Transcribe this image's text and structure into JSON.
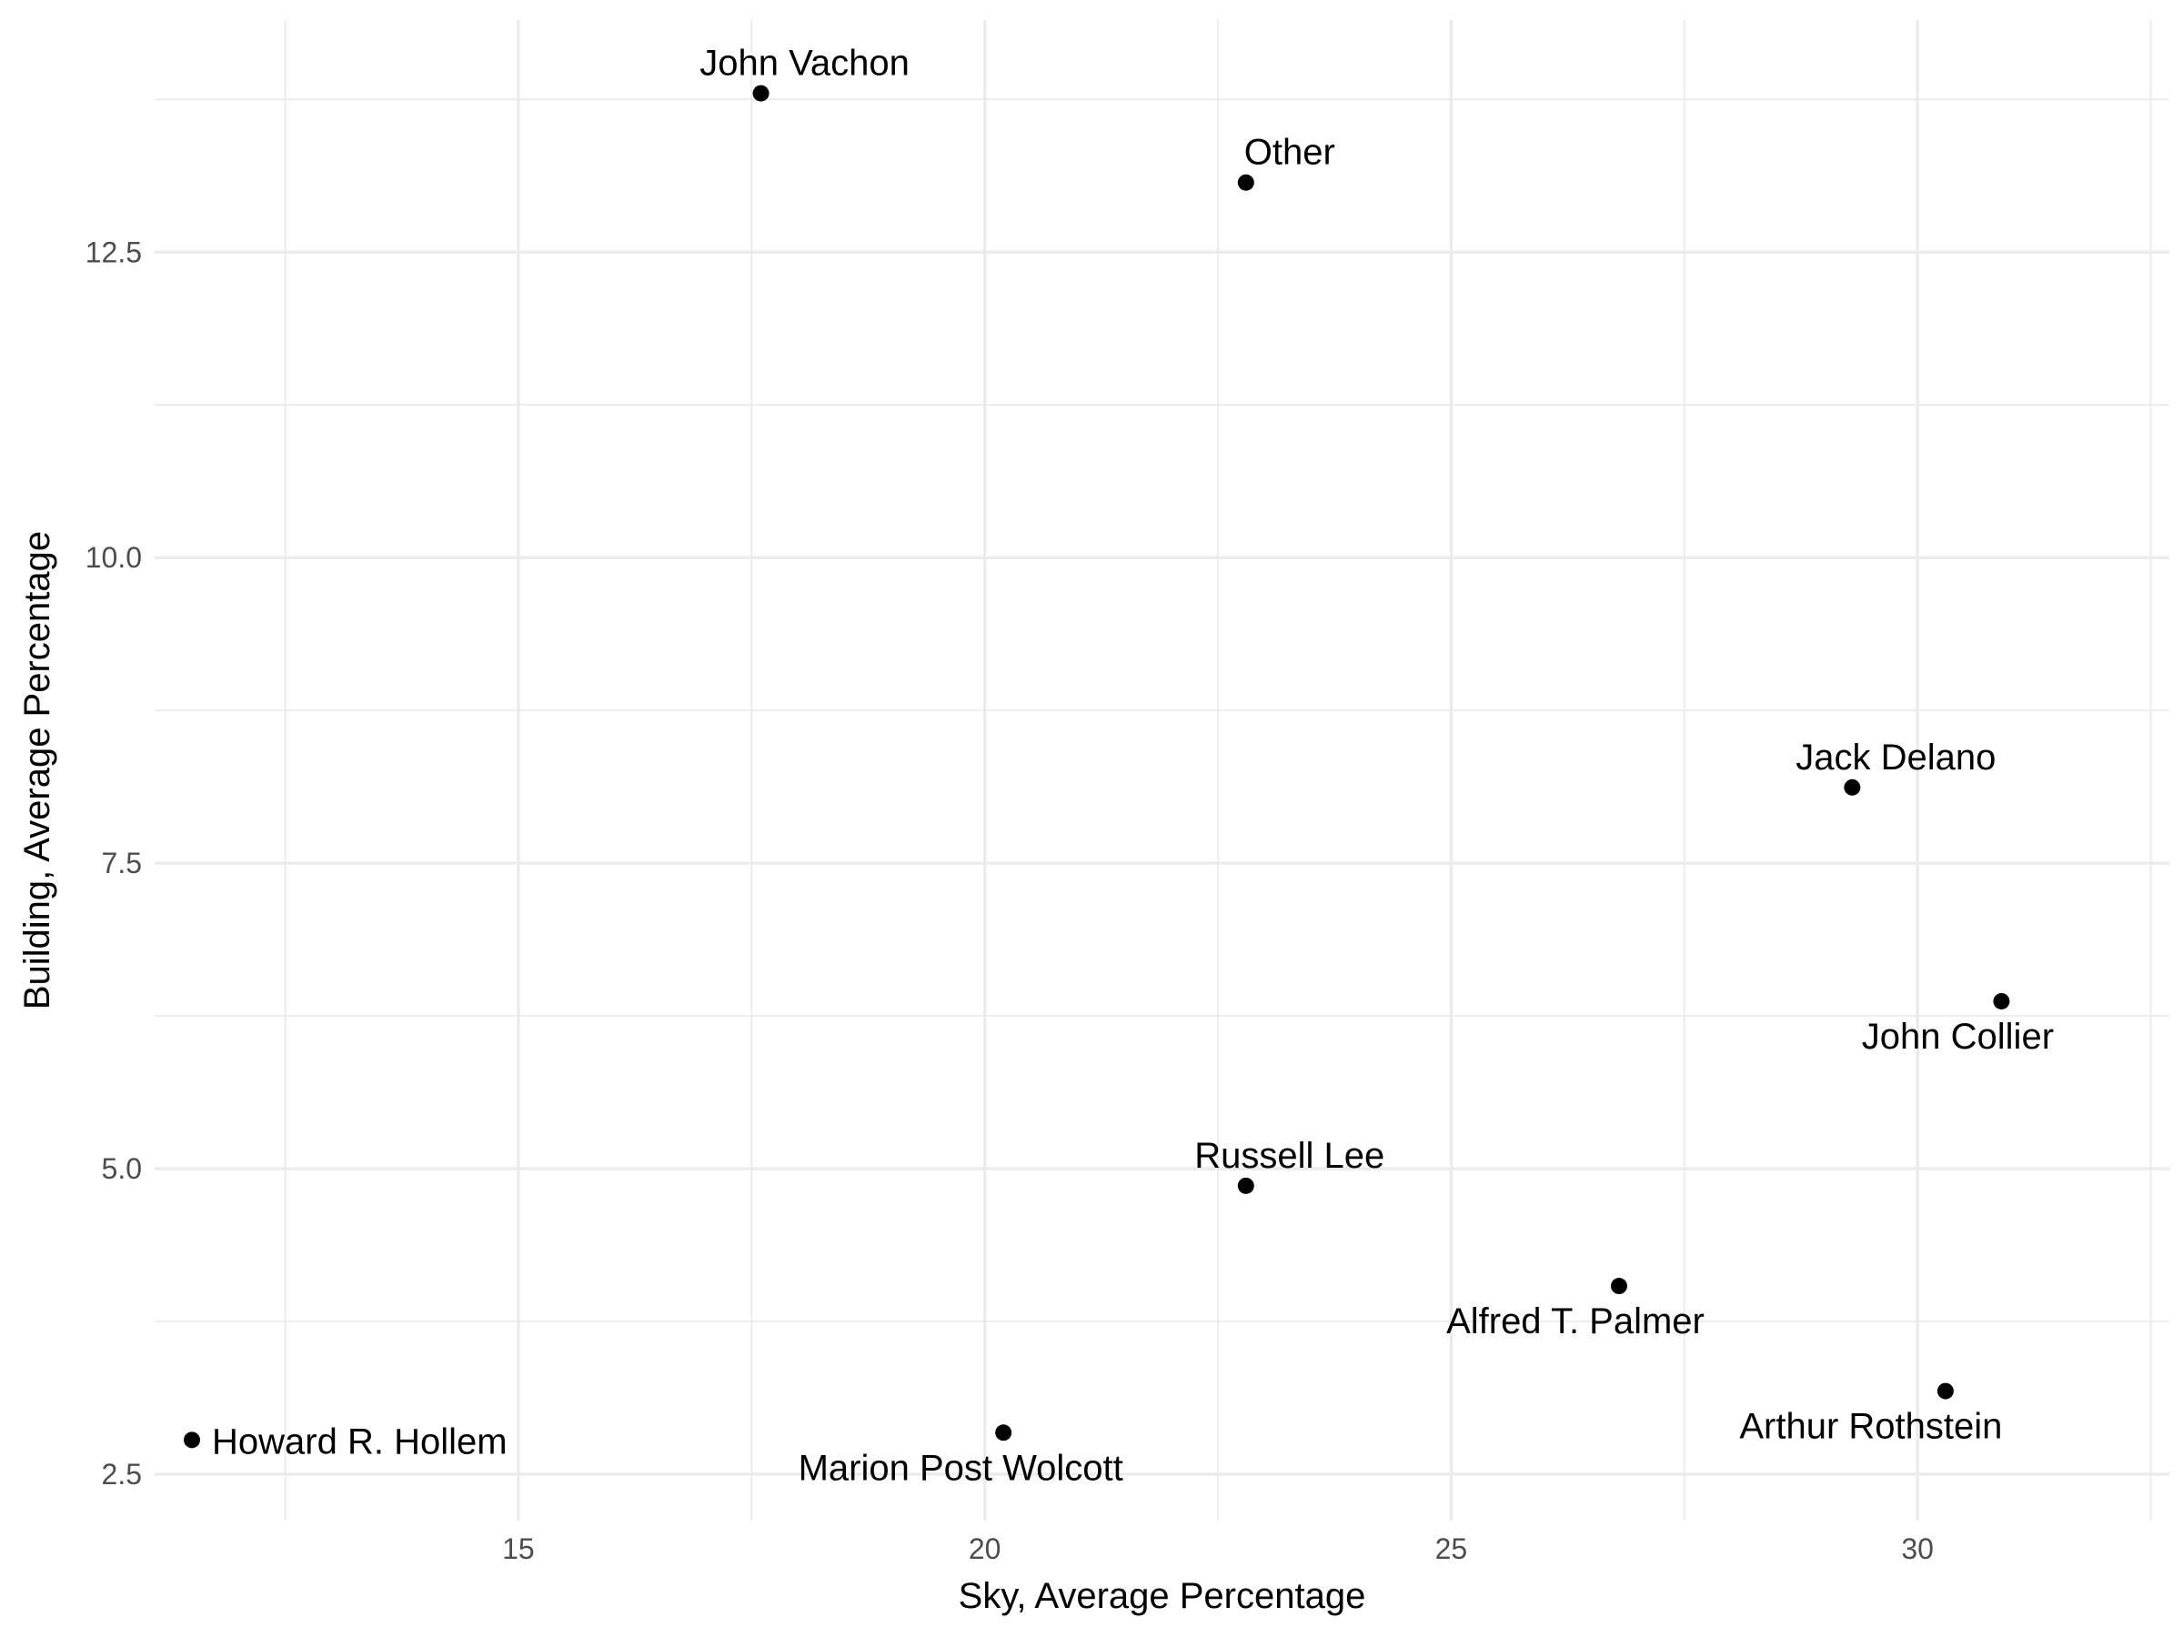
{
  "chart_data": {
    "type": "scatter",
    "title": "",
    "xlabel": "Sky, Average Percentage",
    "ylabel": "Building, Average Percentage",
    "xlim": [
      11.1,
      32.7
    ],
    "ylim": [
      2.12,
      14.4
    ],
    "x_ticks": [
      15,
      20,
      25,
      30
    ],
    "x_tick_labels": [
      "15",
      "20",
      "25",
      "30"
    ],
    "y_ticks": [
      2.5,
      5.0,
      7.5,
      10.0,
      12.5
    ],
    "y_tick_labels": [
      "2.5",
      "5.0",
      "7.5",
      "10.0",
      "12.5"
    ],
    "grid": true,
    "legend": "none",
    "point_color": "#000000",
    "points": [
      {
        "label": "John Vachon",
        "x": 17.6,
        "y": 13.8
      },
      {
        "label": "Other",
        "x": 22.8,
        "y": 13.07
      },
      {
        "label": "Jack Delano",
        "x": 29.3,
        "y": 8.12
      },
      {
        "label": "John Collier",
        "x": 30.9,
        "y": 6.37
      },
      {
        "label": "Russell Lee",
        "x": 22.8,
        "y": 4.86
      },
      {
        "label": "Alfred T. Palmer",
        "x": 26.8,
        "y": 4.04
      },
      {
        "label": "Arthur Rothstein",
        "x": 30.3,
        "y": 3.18
      },
      {
        "label": "Marion Post Wolcott",
        "x": 20.2,
        "y": 2.84
      },
      {
        "label": "Howard R. Hollem",
        "x": 11.5,
        "y": 2.78
      }
    ]
  }
}
